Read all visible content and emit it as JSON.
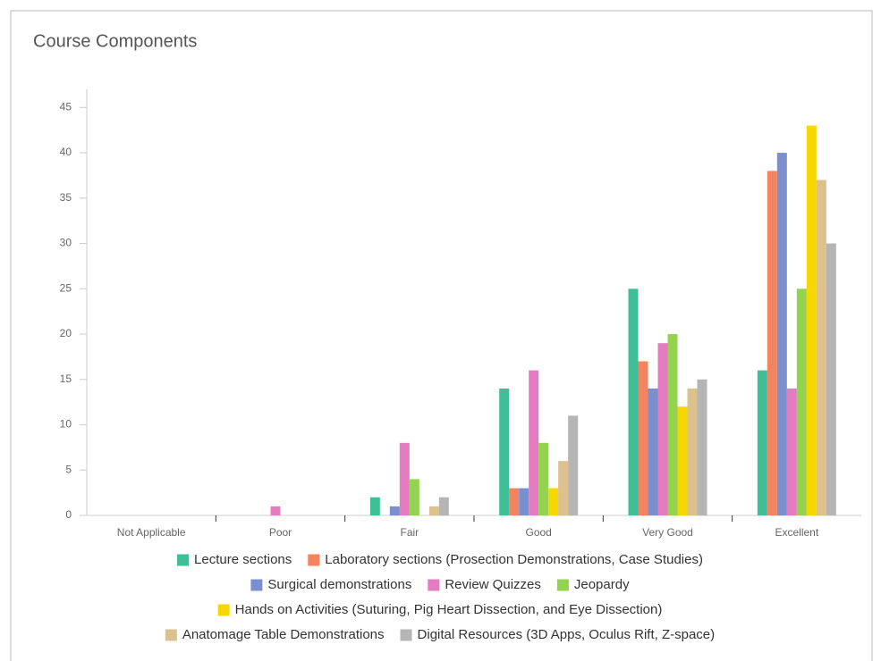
{
  "chart_data": {
    "type": "bar",
    "title": "Course Components",
    "categories": [
      "Not Applicable",
      "Poor",
      "Fair",
      "Good",
      "Very Good",
      "Excellent"
    ],
    "series": [
      {
        "name": "Lecture sections",
        "color": "#3fbf97",
        "values": [
          0,
          0,
          2,
          14,
          25,
          16
        ]
      },
      {
        "name": "Laboratory sections (Prosection Demonstrations, Case Studies)",
        "color": "#f4845f",
        "values": [
          0,
          0,
          0,
          3,
          17,
          38
        ]
      },
      {
        "name": "Surgical demonstrations",
        "color": "#7b8fcf",
        "values": [
          0,
          0,
          1,
          3,
          14,
          40
        ]
      },
      {
        "name": "Review Quizzes",
        "color": "#e57cc2",
        "values": [
          0,
          1,
          8,
          16,
          19,
          14
        ]
      },
      {
        "name": "Jeopardy",
        "color": "#93d34f",
        "values": [
          0,
          0,
          4,
          8,
          20,
          25
        ]
      },
      {
        "name": "Hands on Activities (Suturing, Pig Heart Dissection, and Eye Dissection)",
        "color": "#f7d700",
        "values": [
          0,
          0,
          0,
          3,
          12,
          43
        ]
      },
      {
        "name": "Anatomage Table Demonstrations",
        "color": "#dcc08e",
        "values": [
          0,
          0,
          1,
          6,
          14,
          37
        ]
      },
      {
        "name": "Digital Resources (3D Apps, Oculus Rift, Z-space)",
        "color": "#b5b5b5",
        "values": [
          0,
          0,
          2,
          11,
          15,
          30
        ]
      }
    ],
    "ylim": [
      0,
      47
    ],
    "yticks": [
      0,
      5,
      10,
      15,
      20,
      25,
      30,
      35,
      40,
      45
    ],
    "grid": false,
    "legend": "bottom"
  }
}
